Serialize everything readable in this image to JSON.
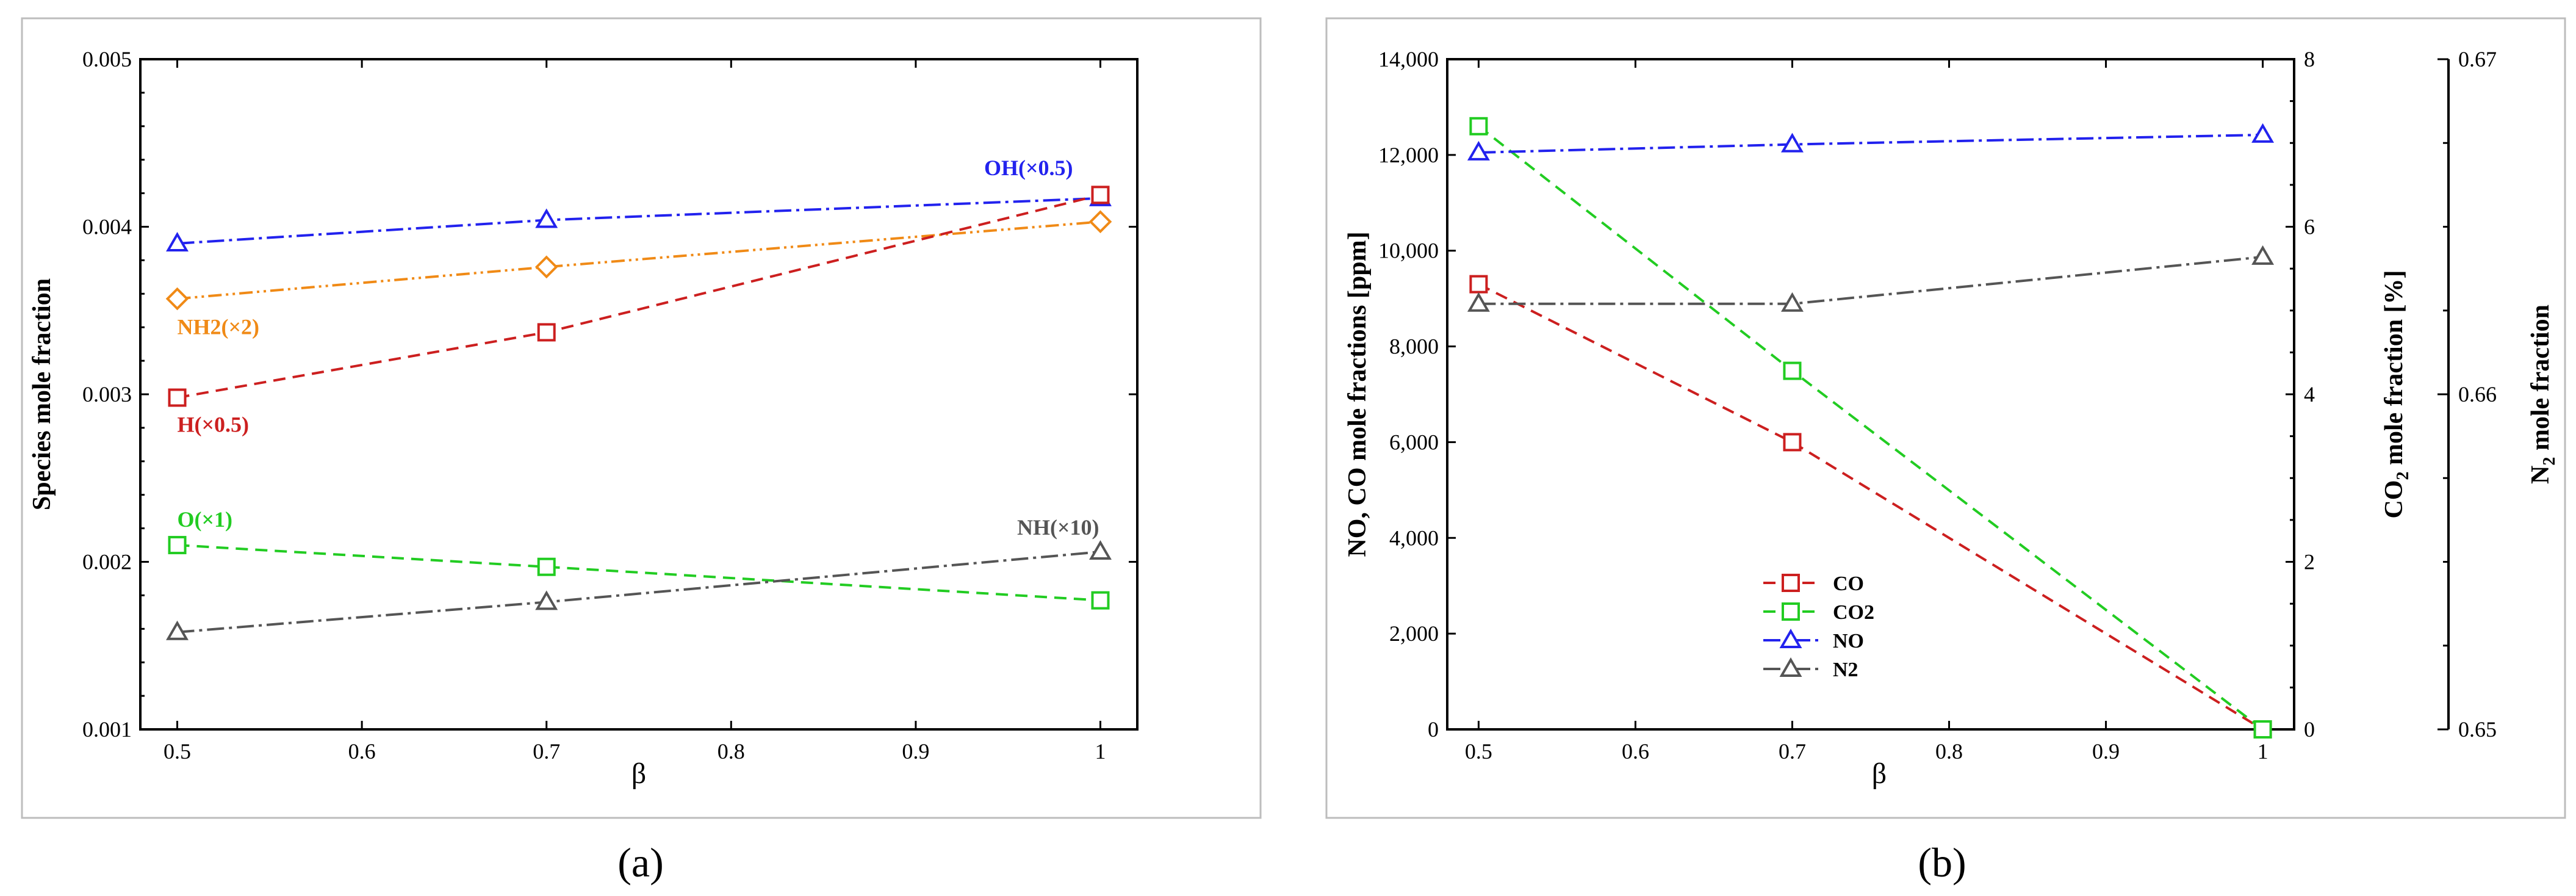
{
  "chart_data": [
    {
      "id": "a",
      "type": "line",
      "caption": "(a)",
      "x": [
        0.5,
        0.7,
        1
      ],
      "xlabel": "β",
      "ylabel": "Species mole fraction",
      "xlim": [
        0.48,
        1.02
      ],
      "ylim": [
        0.001,
        0.005
      ],
      "xticks": [
        0.5,
        0.6,
        0.7,
        0.8,
        0.9,
        1
      ],
      "xtick_labels": [
        "0.5",
        "0.6",
        "0.7",
        "0.8",
        "0.9",
        "1"
      ],
      "yticks": [
        0.001,
        0.002,
        0.003,
        0.004,
        0.005
      ],
      "ytick_labels": [
        "0.001",
        "0.002",
        "0.003",
        "0.004",
        "0.005"
      ],
      "series": [
        {
          "name": "OH(×0.5)",
          "values": [
            0.0039,
            0.00404,
            0.00417
          ],
          "color": "#2222ee",
          "dash": "28,8,5,8",
          "marker": "triangle"
        },
        {
          "name": "NH2(×2)",
          "values": [
            0.00357,
            0.00376,
            0.00403
          ],
          "color": "#f08a16",
          "dash": "22,7,4,7,4,7",
          "marker": "diamond"
        },
        {
          "name": "H(×0.5)",
          "values": [
            0.00298,
            0.00337,
            0.00419
          ],
          "color": "#cc1f1f",
          "dash": "20,12",
          "marker": "square"
        },
        {
          "name": "O(×1)",
          "values": [
            0.0021,
            0.00197,
            0.00177
          ],
          "color": "#22cc22",
          "dash": "20,12",
          "marker": "square"
        },
        {
          "name": "NH(×10)",
          "values": [
            0.00158,
            0.00176,
            0.00206
          ],
          "color": "#555555",
          "dash": "28,8,5,8",
          "marker": "triangle"
        }
      ]
    },
    {
      "id": "b",
      "type": "line",
      "caption": "(b)",
      "x": [
        0.5,
        0.7,
        1
      ],
      "xlabel": "β",
      "xlim": [
        0.48,
        1.02
      ],
      "xticks": [
        0.5,
        0.6,
        0.7,
        0.8,
        0.9,
        1
      ],
      "xtick_labels": [
        "0.5",
        "0.6",
        "0.7",
        "0.8",
        "0.9",
        "1"
      ],
      "axes": {
        "left": {
          "label": "NO, CO mole fractions [ppm]",
          "range": [
            0,
            14000
          ],
          "ticks": [
            0,
            2000,
            4000,
            6000,
            8000,
            10000,
            12000,
            14000
          ],
          "tick_labels": [
            "0",
            "2,000",
            "4,000",
            "6,000",
            "8,000",
            "10,000",
            "12,000",
            "14,000"
          ]
        },
        "right1": {
          "label_main": "CO",
          "label_sub": "2",
          "label_rest": " mole fraction [%]",
          "range": [
            0,
            8
          ],
          "ticks": [
            0,
            2,
            4,
            6,
            8
          ],
          "tick_labels": [
            "0",
            "2",
            "4",
            "6",
            "8"
          ]
        },
        "right2": {
          "label_main": "N",
          "label_sub": "2",
          "label_rest": " mole fraction",
          "range": [
            0.65,
            0.67
          ],
          "ticks": [
            0.65,
            0.66,
            0.67
          ],
          "tick_labels": [
            "0.65",
            "0.66",
            "0.67"
          ]
        }
      },
      "series": [
        {
          "name": "CO",
          "axis": "left",
          "values": [
            9300,
            6000,
            0
          ],
          "color": "#cc1f1f",
          "dash": "20,12",
          "marker": "square"
        },
        {
          "name": "CO2",
          "axis": "right1",
          "values": [
            7.2,
            4.28,
            0
          ],
          "color": "#22cc22",
          "dash": "20,12",
          "marker": "square"
        },
        {
          "name": "NO",
          "axis": "left",
          "values": [
            12050,
            12220,
            12420
          ],
          "color": "#2222ee",
          "dash": "28,8,5,8",
          "marker": "triangle"
        },
        {
          "name": "N2",
          "axis": "right2",
          "values": [
            0.6627,
            0.6627,
            0.6641
          ],
          "color": "#555555",
          "dash": "28,8,5,8",
          "marker": "triangle"
        }
      ],
      "legend": [
        "CO",
        "CO2",
        "NO",
        "N2"
      ],
      "legend_position": "lower-center"
    }
  ]
}
